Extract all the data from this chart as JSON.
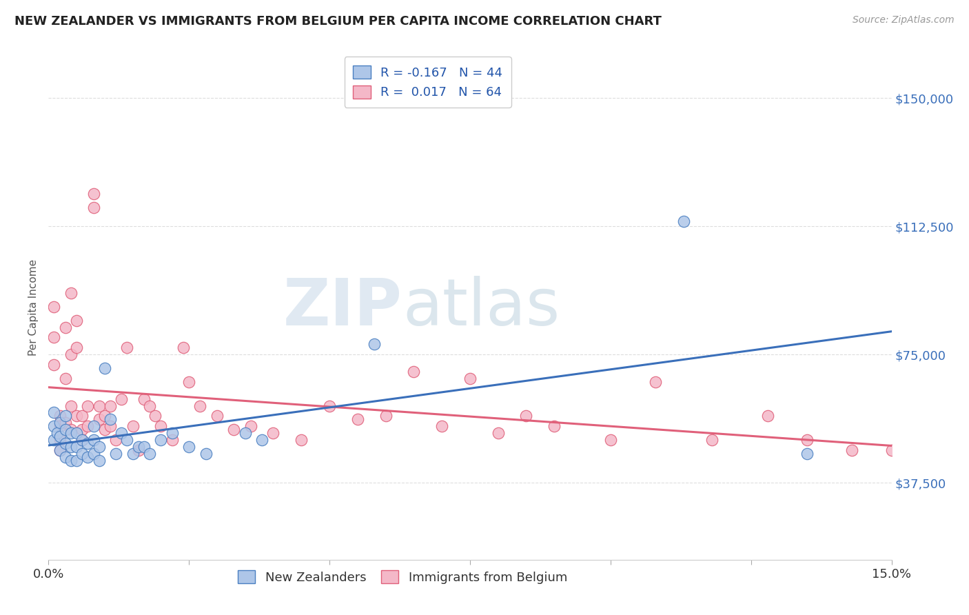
{
  "title": "NEW ZEALANDER VS IMMIGRANTS FROM BELGIUM PER CAPITA INCOME CORRELATION CHART",
  "source": "Source: ZipAtlas.com",
  "ylabel": "Per Capita Income",
  "x_min": 0.0,
  "x_max": 0.15,
  "y_min": 15000,
  "y_max": 162500,
  "y_ticks": [
    37500,
    75000,
    112500,
    150000
  ],
  "y_tick_labels": [
    "$37,500",
    "$75,000",
    "$112,500",
    "$150,000"
  ],
  "x_ticks": [
    0.0,
    0.025,
    0.05,
    0.075,
    0.1,
    0.125,
    0.15
  ],
  "x_tick_labels_show": [
    "0.0%",
    "",
    "",
    "",
    "",
    "",
    "15.0%"
  ],
  "background_color": "#ffffff",
  "grid_color": "#dddddd",
  "blue_fill": "#aec6e8",
  "blue_edge": "#4a7fc1",
  "pink_fill": "#f4b8c8",
  "pink_edge": "#e0607a",
  "blue_line_color": "#3a6fba",
  "pink_line_color": "#e0607a",
  "legend_R_nz": "-0.167",
  "legend_N_nz": "44",
  "legend_R_be": "0.017",
  "legend_N_be": "64",
  "watermark_zip": "ZIP",
  "watermark_atlas": "atlas",
  "nz_x": [
    0.001,
    0.001,
    0.001,
    0.0015,
    0.002,
    0.002,
    0.002,
    0.003,
    0.003,
    0.003,
    0.003,
    0.004,
    0.004,
    0.004,
    0.005,
    0.005,
    0.005,
    0.006,
    0.006,
    0.007,
    0.007,
    0.008,
    0.008,
    0.008,
    0.009,
    0.009,
    0.01,
    0.011,
    0.012,
    0.013,
    0.014,
    0.015,
    0.016,
    0.017,
    0.018,
    0.02,
    0.022,
    0.025,
    0.028,
    0.035,
    0.038,
    0.058,
    0.113,
    0.135
  ],
  "nz_y": [
    58000,
    54000,
    50000,
    52000,
    47000,
    51000,
    55000,
    45000,
    49000,
    53000,
    57000,
    44000,
    48000,
    52000,
    44000,
    48000,
    52000,
    46000,
    50000,
    45000,
    49000,
    46000,
    50000,
    54000,
    44000,
    48000,
    71000,
    56000,
    46000,
    52000,
    50000,
    46000,
    48000,
    48000,
    46000,
    50000,
    52000,
    48000,
    46000,
    52000,
    50000,
    78000,
    114000,
    46000
  ],
  "be_x": [
    0.001,
    0.001,
    0.001,
    0.002,
    0.002,
    0.002,
    0.002,
    0.003,
    0.003,
    0.003,
    0.004,
    0.004,
    0.004,
    0.004,
    0.005,
    0.005,
    0.005,
    0.006,
    0.006,
    0.006,
    0.007,
    0.007,
    0.008,
    0.008,
    0.009,
    0.009,
    0.01,
    0.01,
    0.011,
    0.011,
    0.012,
    0.013,
    0.014,
    0.015,
    0.016,
    0.017,
    0.018,
    0.019,
    0.02,
    0.022,
    0.024,
    0.025,
    0.027,
    0.03,
    0.033,
    0.036,
    0.04,
    0.045,
    0.05,
    0.055,
    0.06,
    0.065,
    0.07,
    0.075,
    0.08,
    0.085,
    0.09,
    0.1,
    0.108,
    0.118,
    0.128,
    0.135,
    0.143,
    0.15
  ],
  "be_y": [
    89000,
    80000,
    72000,
    57000,
    54000,
    50000,
    47000,
    83000,
    68000,
    55000,
    93000,
    75000,
    60000,
    53000,
    85000,
    77000,
    57000,
    57000,
    53000,
    50000,
    60000,
    54000,
    122000,
    118000,
    60000,
    56000,
    57000,
    53000,
    60000,
    54000,
    50000,
    62000,
    77000,
    54000,
    47000,
    62000,
    60000,
    57000,
    54000,
    50000,
    77000,
    67000,
    60000,
    57000,
    53000,
    54000,
    52000,
    50000,
    60000,
    56000,
    57000,
    70000,
    54000,
    68000,
    52000,
    57000,
    54000,
    50000,
    67000,
    50000,
    57000,
    50000,
    47000,
    47000
  ]
}
